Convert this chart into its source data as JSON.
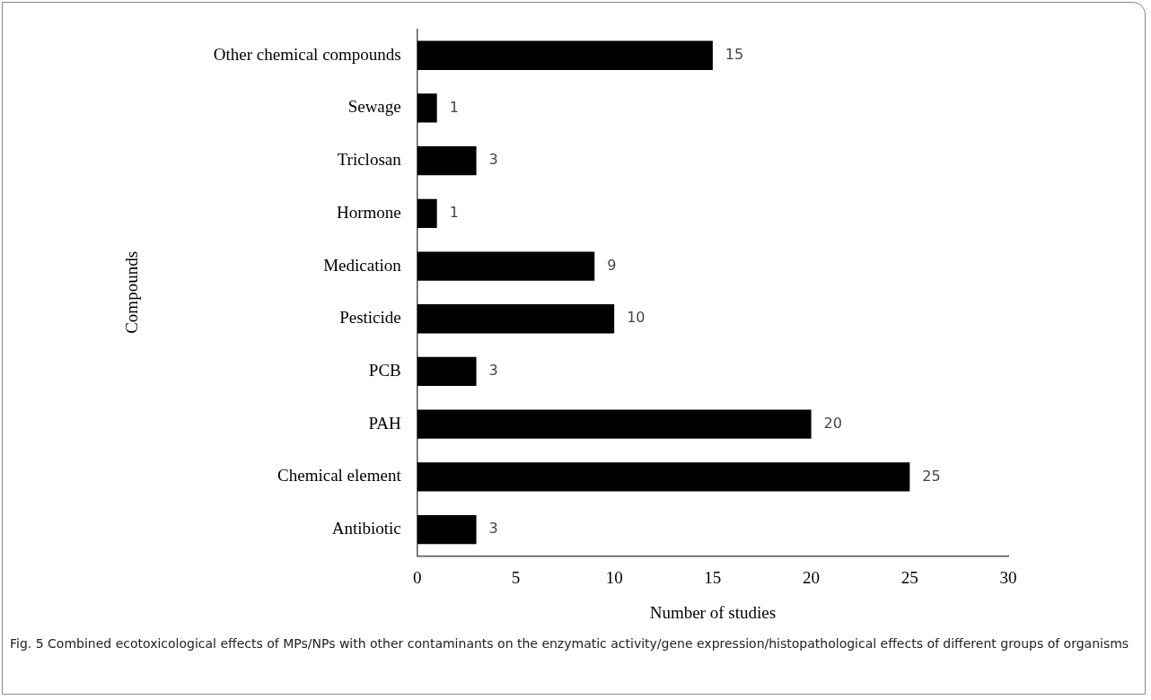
{
  "chart_data": {
    "type": "bar",
    "orientation": "horizontal",
    "categories": [
      "Other chemical compounds",
      "Sewage",
      "Triclosan",
      "Hormone",
      "Medication",
      "Pesticide",
      "PCB",
      "PAH",
      "Chemical element",
      "Antibiotic"
    ],
    "values": [
      15,
      1,
      3,
      1,
      9,
      10,
      3,
      20,
      25,
      3
    ],
    "color": "#000000",
    "xlim": [
      0,
      30
    ],
    "xticks": [
      0,
      5,
      10,
      15,
      20,
      25,
      30
    ],
    "xlabel": "Number of studies",
    "ylabel": "Compounds",
    "data_labels": true,
    "grid": false,
    "legend": false,
    "annotations": [
      "Fig. 5 Combined ecotoxicological effects of MPs/NPs with other contaminants on the enzymatic activity/gene expression/histopathological effects of different groups of organisms"
    ]
  }
}
